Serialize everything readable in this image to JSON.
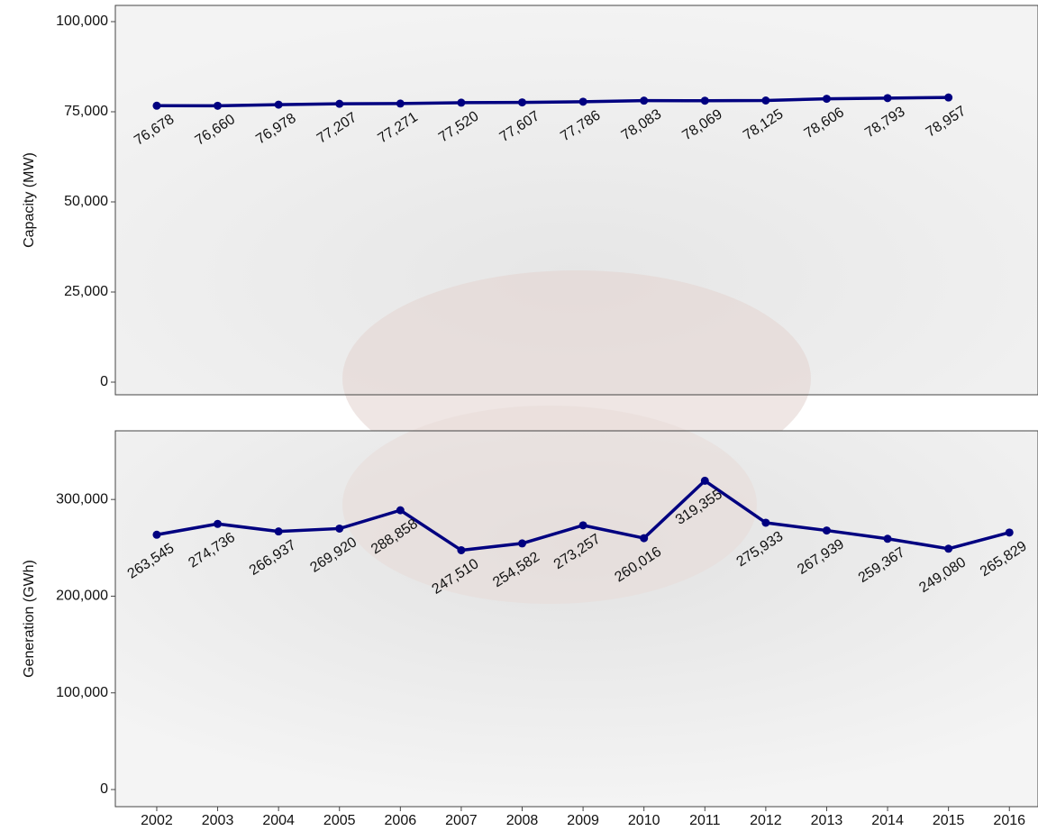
{
  "chart_data": [
    {
      "type": "line",
      "y_label": "Capacity (MW)",
      "x": [
        2002,
        2003,
        2004,
        2005,
        2006,
        2007,
        2008,
        2009,
        2010,
        2011,
        2012,
        2013,
        2014,
        2015,
        2016
      ],
      "values": [
        76678,
        76660,
        76978,
        77207,
        77271,
        77520,
        77607,
        77786,
        78083,
        78069,
        78125,
        78606,
        78793,
        78957,
        null
      ],
      "value_labels": [
        "76,678",
        "76,660",
        "76,978",
        "77,207",
        "77,271",
        "77,520",
        "77,607",
        "77,786",
        "78,083",
        "78,069",
        "78,125",
        "78,606",
        "78,793",
        "78,957",
        null
      ],
      "color": "#000080",
      "xlim": [
        2001.32,
        2016.47
      ],
      "ylim": [
        -3500,
        104500
      ],
      "yticks": [
        0,
        {
          "value": 25000,
          "label": "25,000"
        },
        {
          "value": 50000,
          "label": "50,000"
        },
        {
          "value": 75000,
          "label": "75,000"
        },
        {
          "value": 100000,
          "label": "100,000"
        }
      ]
    },
    {
      "type": "line",
      "y_label": "Generation (GWh)",
      "x": [
        2002,
        2003,
        2004,
        2005,
        2006,
        2007,
        2008,
        2009,
        2010,
        2011,
        2012,
        2013,
        2014,
        2015,
        2016
      ],
      "values": [
        263545,
        274736,
        266937,
        269920,
        288858,
        247510,
        254582,
        273257,
        260016,
        319355,
        275933,
        267939,
        259367,
        249080,
        265829
      ],
      "value_labels": [
        "263,545",
        "274,736",
        "266,937",
        "269,920",
        "288,858",
        "247,510",
        "254,582",
        "273,257",
        "260,016",
        "319,355",
        "275,933",
        "267,939",
        "259,367",
        "249,080",
        "265,829"
      ],
      "color": "#000080",
      "xlim": [
        2001.32,
        2016.47
      ],
      "ylim": [
        -17700,
        371000
      ],
      "xticks": [
        2002,
        2003,
        2004,
        2005,
        2006,
        2007,
        2008,
        2009,
        2010,
        2011,
        2012,
        2013,
        2014,
        2015,
        2016
      ],
      "yticks": [
        0,
        {
          "value": 100000,
          "label": "100,000"
        },
        {
          "value": 200000,
          "label": "200,000"
        },
        {
          "value": 300000,
          "label": "300,000"
        }
      ]
    }
  ]
}
